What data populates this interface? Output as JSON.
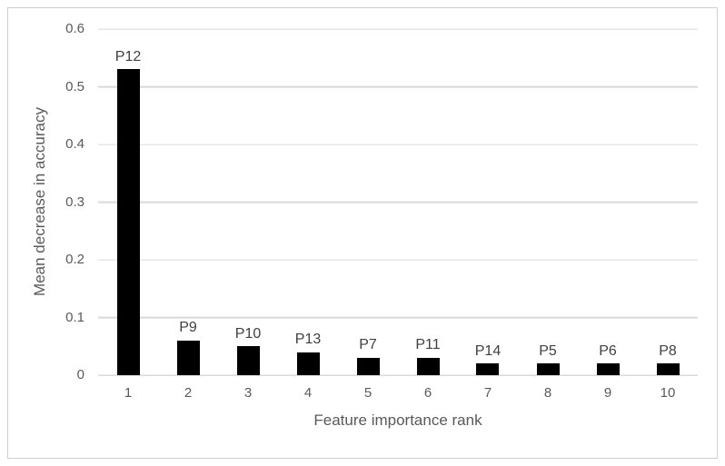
{
  "chart_data": {
    "type": "bar",
    "title": "",
    "xlabel": "Feature importance rank",
    "ylabel": "Mean decrease in accuracy",
    "categories": [
      "1",
      "2",
      "3",
      "4",
      "5",
      "6",
      "7",
      "8",
      "9",
      "10"
    ],
    "bar_labels": [
      "P12",
      "P9",
      "P10",
      "P13",
      "P7",
      "P11",
      "P14",
      "P5",
      "P6",
      "P8"
    ],
    "values": [
      0.53,
      0.06,
      0.05,
      0.04,
      0.03,
      0.03,
      0.02,
      0.02,
      0.02,
      0.02
    ],
    "ylim": [
      0,
      0.6
    ],
    "ytick_values": [
      0,
      0.1,
      0.2,
      0.3,
      0.4,
      0.5,
      0.6
    ],
    "ytick_labels": [
      "0",
      "0.1",
      "0.2",
      "0.3",
      "0.4",
      "0.5",
      "0.6"
    ],
    "grid": true,
    "legend": "none",
    "bar_color": "#000000",
    "gridline_color": "#d9d9d9",
    "zero_line_color": "#c6c6c6",
    "tick_text_color": "#595959",
    "bar_label_color": "#404040",
    "border_color": "#d0cece",
    "background_color": "#ffffff"
  }
}
